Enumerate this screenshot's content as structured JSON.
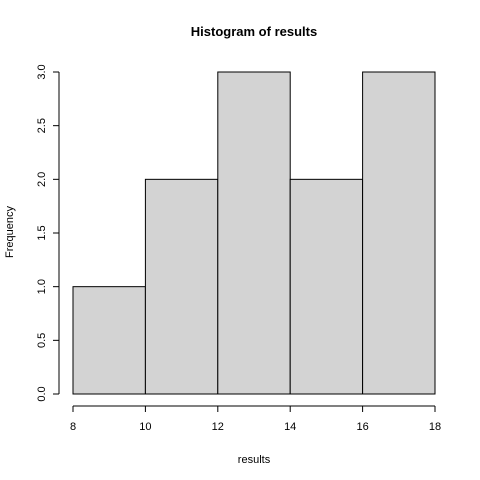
{
  "chart_data": {
    "type": "bar",
    "title": "Histogram of results",
    "xlabel": "results",
    "ylabel": "Frequency",
    "bins": [
      {
        "start": 8,
        "end": 10,
        "count": 1
      },
      {
        "start": 10,
        "end": 12,
        "count": 2
      },
      {
        "start": 12,
        "end": 14,
        "count": 3
      },
      {
        "start": 14,
        "end": 16,
        "count": 2
      },
      {
        "start": 16,
        "end": 18,
        "count": 3
      }
    ],
    "xlim": [
      8,
      18
    ],
    "ylim": [
      0,
      3
    ],
    "x_ticks": [
      8,
      10,
      12,
      14,
      16,
      18
    ],
    "y_ticks": [
      0,
      0.5,
      1,
      1.5,
      2,
      2.5,
      3
    ],
    "x_tick_labels": [
      "8",
      "10",
      "12",
      "14",
      "16",
      "18"
    ],
    "y_tick_labels": [
      "0.0",
      "0.5",
      "1.0",
      "1.5",
      "2.0",
      "2.5",
      "3.0"
    ],
    "bar_color": "#d3d3d3",
    "grid": false
  }
}
